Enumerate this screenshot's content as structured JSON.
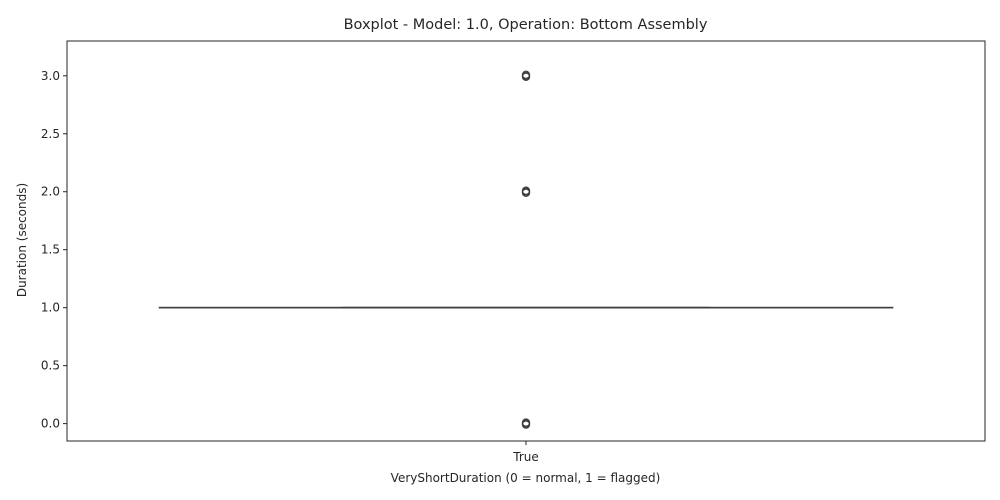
{
  "chart_data": {
    "type": "box",
    "title": "Boxplot - Model: 1.0, Operation: Bottom Assembly",
    "xlabel": "VeryShortDuration (0 = normal, 1 = flagged)",
    "ylabel": "Duration (seconds)",
    "categories": [
      "True"
    ],
    "ylim": [
      -0.15,
      3.3
    ],
    "yticks": [
      "0.0",
      "0.5",
      "1.0",
      "1.5",
      "2.0",
      "2.5",
      "3.0"
    ],
    "ytick_values": [
      0,
      0.5,
      1.0,
      1.5,
      2.0,
      2.5,
      3.0
    ],
    "boxes": [
      {
        "category": "True",
        "min": 1.0,
        "q1": 1.0,
        "median": 1.0,
        "q3": 1.0,
        "max": 1.0,
        "outliers": [
          0.0,
          2.0,
          3.0
        ]
      }
    ],
    "grid": false,
    "colors": {
      "box_line": "#3f3f3f",
      "outlier_edge": "#3f3f3f",
      "axis": "#262626"
    }
  }
}
